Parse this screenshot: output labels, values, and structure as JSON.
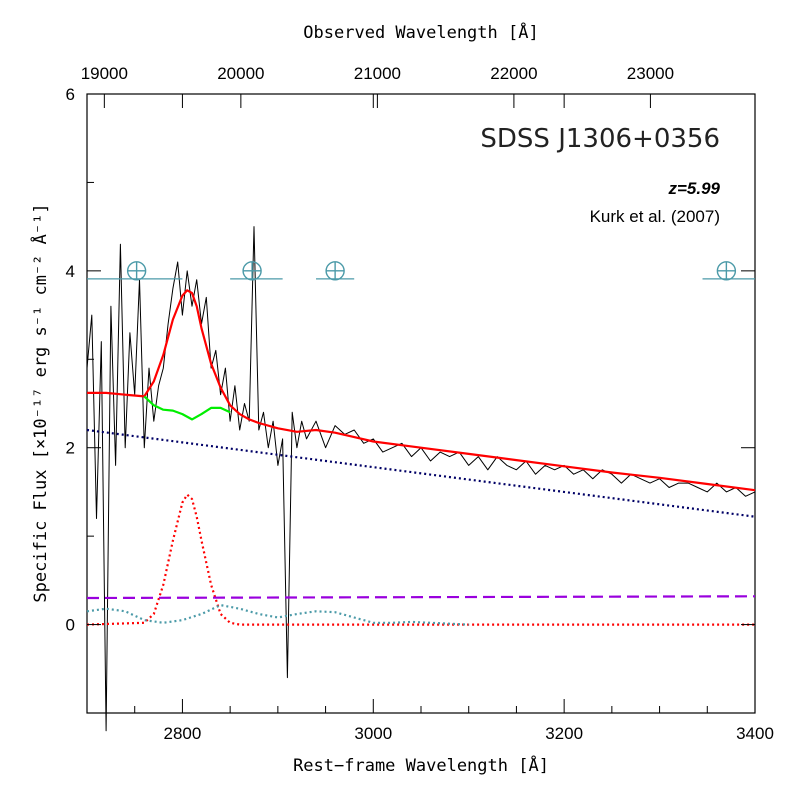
{
  "chart_data": {
    "type": "line",
    "title": "SDSS J1306+0356",
    "annotations": {
      "redshift": "z=5.99",
      "reference": "Kurk et al. (2007)"
    },
    "xlabel": "Rest−frame Wavelength [Å]",
    "x2label": "Observed Wavelength [Å]",
    "ylabel": "Specific Flux [×10⁻¹⁷ erg s⁻¹ cm⁻² Å⁻¹]",
    "xlim": [
      2700,
      3400
    ],
    "ylim": [
      -1,
      6
    ],
    "x_ticks": [
      "2800",
      "3000",
      "3200",
      "3400"
    ],
    "x_tick_values": [
      2800,
      3000,
      3200,
      3400
    ],
    "top_ticks": [
      "19000",
      "20000",
      "21000",
      "22000",
      "23000"
    ],
    "top_tick_values": [
      19000,
      20000,
      21000,
      22000,
      23000
    ],
    "redshift_value": 5.99,
    "y_ticks": [
      "0",
      "2",
      "4",
      "6"
    ],
    "y_tick_values": [
      0,
      2,
      4,
      6
    ],
    "grid": false,
    "telluric_markers": [
      {
        "x": 2752,
        "y": 4.0,
        "x_range": [
          2700,
          2800
        ]
      },
      {
        "x": 2873,
        "y": 4.0,
        "x_range": [
          2850,
          2905
        ]
      },
      {
        "x": 2960,
        "y": 4.0,
        "x_range": [
          2940,
          2980
        ]
      },
      {
        "x": 3370,
        "y": 4.0,
        "x_range": [
          3345,
          3400
        ]
      }
    ],
    "series": [
      {
        "kind": "observed_spectrum",
        "color": "#000000",
        "style": "solid",
        "x": [
          2700,
          2705,
          2710,
          2715,
          2720,
          2725,
          2730,
          2735,
          2740,
          2745,
          2750,
          2755,
          2760,
          2765,
          2770,
          2775,
          2780,
          2785,
          2790,
          2795,
          2800,
          2805,
          2810,
          2815,
          2820,
          2825,
          2830,
          2835,
          2840,
          2845,
          2850,
          2855,
          2860,
          2865,
          2870,
          2875,
          2880,
          2885,
          2890,
          2895,
          2900,
          2905,
          2910,
          2915,
          2920,
          2925,
          2930,
          2940,
          2950,
          2960,
          2970,
          2980,
          2990,
          3000,
          3010,
          3020,
          3030,
          3040,
          3050,
          3060,
          3070,
          3080,
          3090,
          3100,
          3110,
          3120,
          3130,
          3140,
          3150,
          3160,
          3170,
          3180,
          3190,
          3200,
          3210,
          3220,
          3230,
          3240,
          3250,
          3260,
          3270,
          3280,
          3290,
          3300,
          3310,
          3320,
          3330,
          3340,
          3350,
          3360,
          3370,
          3380,
          3390,
          3400
        ],
        "y": [
          2.9,
          3.5,
          1.2,
          3.2,
          -1.2,
          3.6,
          1.8,
          4.3,
          2.0,
          3.3,
          2.6,
          3.9,
          2.0,
          2.9,
          2.3,
          2.7,
          2.9,
          3.4,
          3.8,
          4.1,
          3.5,
          4.0,
          3.6,
          3.9,
          3.4,
          3.7,
          2.9,
          3.1,
          2.6,
          2.9,
          2.3,
          2.7,
          2.2,
          2.5,
          2.3,
          4.5,
          2.2,
          2.4,
          2.0,
          2.3,
          1.8,
          2.1,
          -0.6,
          2.4,
          2.0,
          2.3,
          2.1,
          2.3,
          2.0,
          2.25,
          2.15,
          2.2,
          2.05,
          2.1,
          1.95,
          2.0,
          2.05,
          1.9,
          2.0,
          1.85,
          1.95,
          1.9,
          1.95,
          1.8,
          1.9,
          1.75,
          1.9,
          1.8,
          1.75,
          1.85,
          1.7,
          1.8,
          1.75,
          1.8,
          1.7,
          1.75,
          1.65,
          1.75,
          1.7,
          1.6,
          1.7,
          1.65,
          1.6,
          1.65,
          1.55,
          1.6,
          1.6,
          1.55,
          1.5,
          1.6,
          1.5,
          1.55,
          1.45,
          1.5
        ]
      },
      {
        "kind": "total_fit",
        "color": "#ff0000",
        "style": "solid",
        "x": [
          2700,
          2720,
          2740,
          2760,
          2770,
          2780,
          2790,
          2800,
          2805,
          2810,
          2815,
          2820,
          2830,
          2840,
          2850,
          2860,
          2870,
          2880,
          2900,
          2920,
          2940,
          2960,
          2980,
          3000,
          3050,
          3100,
          3150,
          3200,
          3250,
          3300,
          3350,
          3400
        ],
        "y": [
          2.62,
          2.62,
          2.6,
          2.58,
          2.75,
          3.05,
          3.45,
          3.72,
          3.78,
          3.75,
          3.6,
          3.35,
          2.95,
          2.68,
          2.48,
          2.38,
          2.32,
          2.28,
          2.22,
          2.18,
          2.2,
          2.17,
          2.12,
          2.07,
          2.0,
          1.93,
          1.86,
          1.79,
          1.72,
          1.66,
          1.59,
          1.52
        ]
      },
      {
        "kind": "fe_plus_continuum",
        "color": "#00ee00",
        "style": "solid",
        "x": [
          2760,
          2770,
          2780,
          2790,
          2800,
          2810,
          2820,
          2830,
          2840,
          2850
        ],
        "y": [
          2.58,
          2.48,
          2.43,
          2.42,
          2.38,
          2.32,
          2.38,
          2.45,
          2.45,
          2.4
        ]
      },
      {
        "kind": "power_law_continuum",
        "color": "#000066",
        "style": "dotted",
        "x": [
          2700,
          3400
        ],
        "y": [
          2.2,
          1.22
        ]
      },
      {
        "kind": "mgii_gaussian",
        "color": "#ff0000",
        "style": "dotted",
        "x": [
          2700,
          2760,
          2770,
          2780,
          2790,
          2800,
          2805,
          2810,
          2815,
          2820,
          2830,
          2840,
          2850,
          2860,
          3400
        ],
        "y": [
          0,
          0.02,
          0.12,
          0.45,
          0.95,
          1.38,
          1.47,
          1.42,
          1.22,
          0.95,
          0.45,
          0.12,
          0.02,
          0,
          0
        ]
      },
      {
        "kind": "balmer_continuum",
        "color": "#9900dd",
        "style": "dashed",
        "x": [
          2700,
          3400
        ],
        "y": [
          0.3,
          0.32
        ]
      },
      {
        "kind": "fe_template",
        "color": "#4b9aa8",
        "style": "dotted",
        "x": [
          2700,
          2720,
          2740,
          2760,
          2780,
          2800,
          2820,
          2840,
          2860,
          2880,
          2900,
          2920,
          2940,
          2960,
          2980,
          3000,
          3020,
          3040,
          3060,
          3080,
          3100
        ],
        "y": [
          0.15,
          0.18,
          0.15,
          0.05,
          0.02,
          0.05,
          0.12,
          0.22,
          0.18,
          0.12,
          0.08,
          0.12,
          0.15,
          0.14,
          0.08,
          0.02,
          0.02,
          0.03,
          0.02,
          0.01,
          0.0
        ]
      }
    ]
  }
}
